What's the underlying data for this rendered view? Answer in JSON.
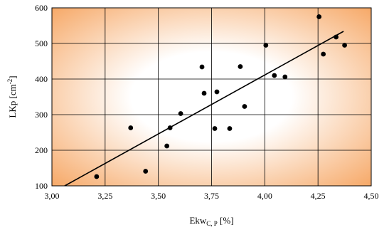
{
  "chart_data": {
    "type": "scatter",
    "xlabel": "Ekw",
    "xlabel_sub": "C, P",
    "xlabel_unit": " [%]",
    "ylabel": "LKp [cm",
    "ylabel_sup": "-2",
    "ylabel_close": "]",
    "xlim": [
      3.0,
      4.5
    ],
    "ylim": [
      100,
      600
    ],
    "x_ticks": [
      3.0,
      3.25,
      3.5,
      3.75,
      4.0,
      4.25,
      4.5
    ],
    "x_tick_labels": [
      "3,00",
      "3,25",
      "3,50",
      "3,75",
      "4,00",
      "4,25",
      "4,50"
    ],
    "y_ticks": [
      100,
      200,
      300,
      400,
      500,
      600
    ],
    "y_tick_labels": [
      "100",
      "200",
      "300",
      "400",
      "500",
      "600"
    ],
    "grid": true,
    "series": [
      {
        "points": [
          {
            "x": 3.21,
            "y": 126
          },
          {
            "x": 3.37,
            "y": 263
          },
          {
            "x": 3.44,
            "y": 141
          },
          {
            "x": 3.54,
            "y": 212
          },
          {
            "x": 3.555,
            "y": 263
          },
          {
            "x": 3.605,
            "y": 303
          },
          {
            "x": 3.705,
            "y": 434
          },
          {
            "x": 3.715,
            "y": 360
          },
          {
            "x": 3.765,
            "y": 261
          },
          {
            "x": 3.775,
            "y": 364
          },
          {
            "x": 3.835,
            "y": 261
          },
          {
            "x": 3.885,
            "y": 435
          },
          {
            "x": 3.905,
            "y": 323
          },
          {
            "x": 4.005,
            "y": 495
          },
          {
            "x": 4.045,
            "y": 410
          },
          {
            "x": 4.095,
            "y": 406
          },
          {
            "x": 4.255,
            "y": 575
          },
          {
            "x": 4.275,
            "y": 470
          },
          {
            "x": 4.335,
            "y": 518
          },
          {
            "x": 4.375,
            "y": 495
          }
        ]
      }
    ],
    "trendline": {
      "x": [
        3.06,
        4.37
      ],
      "y": [
        100,
        534
      ]
    },
    "colors": {
      "background_edge": "#f6a663",
      "background_center": "#ffffff",
      "marker": "#000000"
    }
  }
}
